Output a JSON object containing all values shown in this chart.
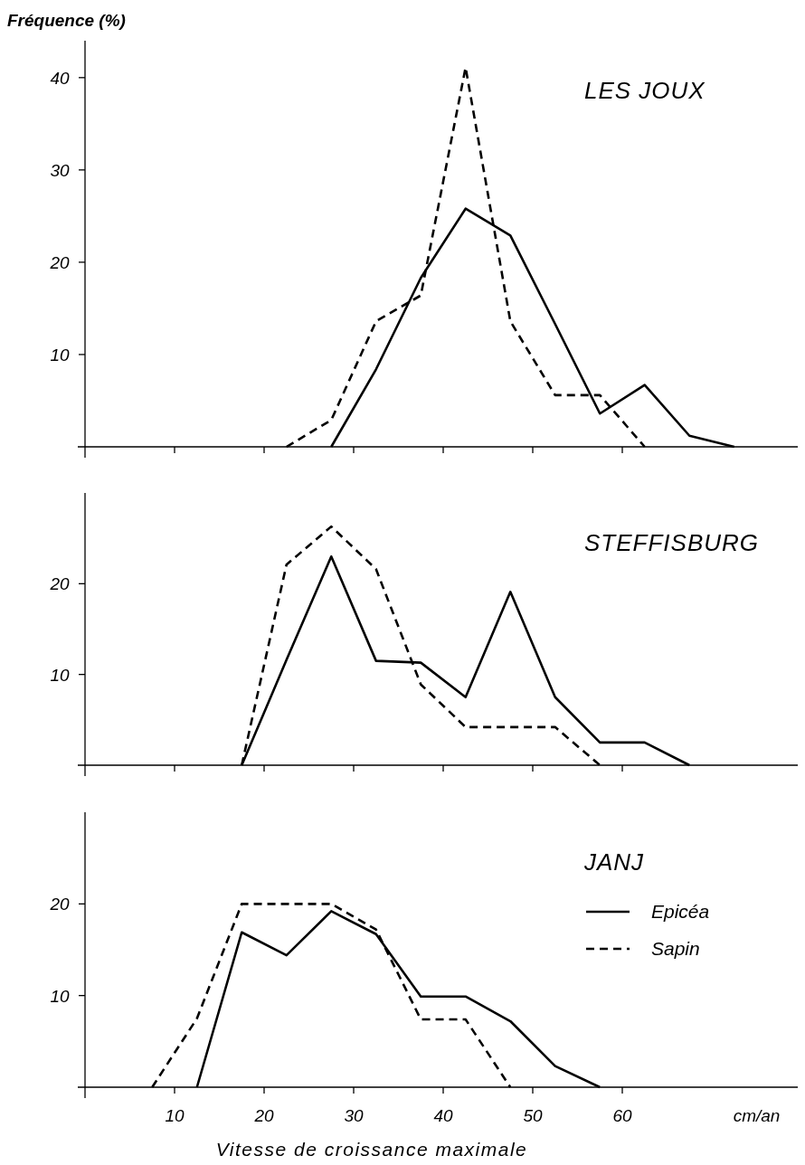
{
  "chart_data": [
    {
      "type": "line",
      "title": "LES JOUX",
      "ylabel": "Fréquence (%)",
      "xlim": [
        0,
        80
      ],
      "xticks": [
        10,
        20,
        30,
        40,
        50,
        60
      ],
      "ylim": [
        0,
        44
      ],
      "yticks": [
        10,
        20,
        30,
        40
      ],
      "tick_labels": "y",
      "legend": false,
      "grid": false,
      "marker": "none",
      "series": [
        {
          "color": "#000000",
          "line_style": "solid",
          "x": [
            27.5,
            32.5,
            37.5,
            42.5,
            47.5,
            52.5,
            57.5,
            62.5,
            67.5,
            72.5
          ],
          "values": [
            0,
            8.4,
            18.3,
            25.8,
            22.9,
            13.3,
            3.6,
            6.7,
            1.2,
            0
          ]
        },
        {
          "color": "#000000",
          "line_style": "dashed",
          "x": [
            22.5,
            27.5,
            32.5,
            37.5,
            42.5,
            47.5,
            52.5,
            57.5,
            62.5
          ],
          "values": [
            0,
            2.9,
            13.6,
            16.4,
            41.1,
            13.6,
            5.6,
            5.6,
            0
          ]
        }
      ]
    },
    {
      "type": "line",
      "title": "STEFFISBURG",
      "xlim": [
        0,
        80
      ],
      "xticks": [
        10,
        20,
        30,
        40,
        50,
        60
      ],
      "ylim": [
        0,
        30
      ],
      "yticks": [
        10,
        20
      ],
      "tick_labels": "y",
      "legend": false,
      "grid": false,
      "marker": "none",
      "series": [
        {
          "color": "#000000",
          "line_style": "solid",
          "x": [
            17.5,
            22.5,
            27.5,
            32.5,
            37.5,
            42.5,
            47.5,
            52.5,
            57.5,
            62.5,
            67.5
          ],
          "values": [
            0,
            11.6,
            23.0,
            11.5,
            11.3,
            7.5,
            19.1,
            7.5,
            2.5,
            2.5,
            0
          ]
        },
        {
          "color": "#000000",
          "line_style": "dashed",
          "x": [
            17.5,
            22.5,
            27.5,
            32.5,
            37.5,
            42.5,
            47.5,
            52.5,
            57.5
          ],
          "values": [
            0,
            22.1,
            26.3,
            21.6,
            8.9,
            4.2,
            4.2,
            4.2,
            0
          ]
        }
      ]
    },
    {
      "type": "line",
      "title": "JANJ",
      "xlabel": "Vitesse de croissance maximale",
      "annotations": [
        "cm/an"
      ],
      "xlim": [
        0,
        80
      ],
      "xticks": [
        10,
        20,
        30,
        40,
        50,
        60
      ],
      "ylim": [
        0,
        30
      ],
      "yticks": [
        10,
        20
      ],
      "legend": "right",
      "grid": false,
      "marker": "none",
      "series": [
        {
          "name": "Epicéa",
          "color": "#000000",
          "line_style": "solid",
          "x": [
            12.5,
            17.5,
            22.5,
            27.5,
            32.5,
            37.5,
            42.5,
            47.5,
            52.5,
            57.5
          ],
          "values": [
            0,
            16.9,
            14.4,
            19.2,
            16.7,
            9.9,
            9.9,
            7.2,
            2.3,
            0
          ]
        },
        {
          "name": "Sapin",
          "color": "#000000",
          "line_style": "dashed",
          "x": [
            7.5,
            12.5,
            17.5,
            22.5,
            27.5,
            32.5,
            37.5,
            42.5,
            47.5
          ],
          "values": [
            0,
            7.5,
            20,
            20,
            20,
            17.2,
            7.4,
            7.4,
            0
          ]
        }
      ]
    }
  ]
}
